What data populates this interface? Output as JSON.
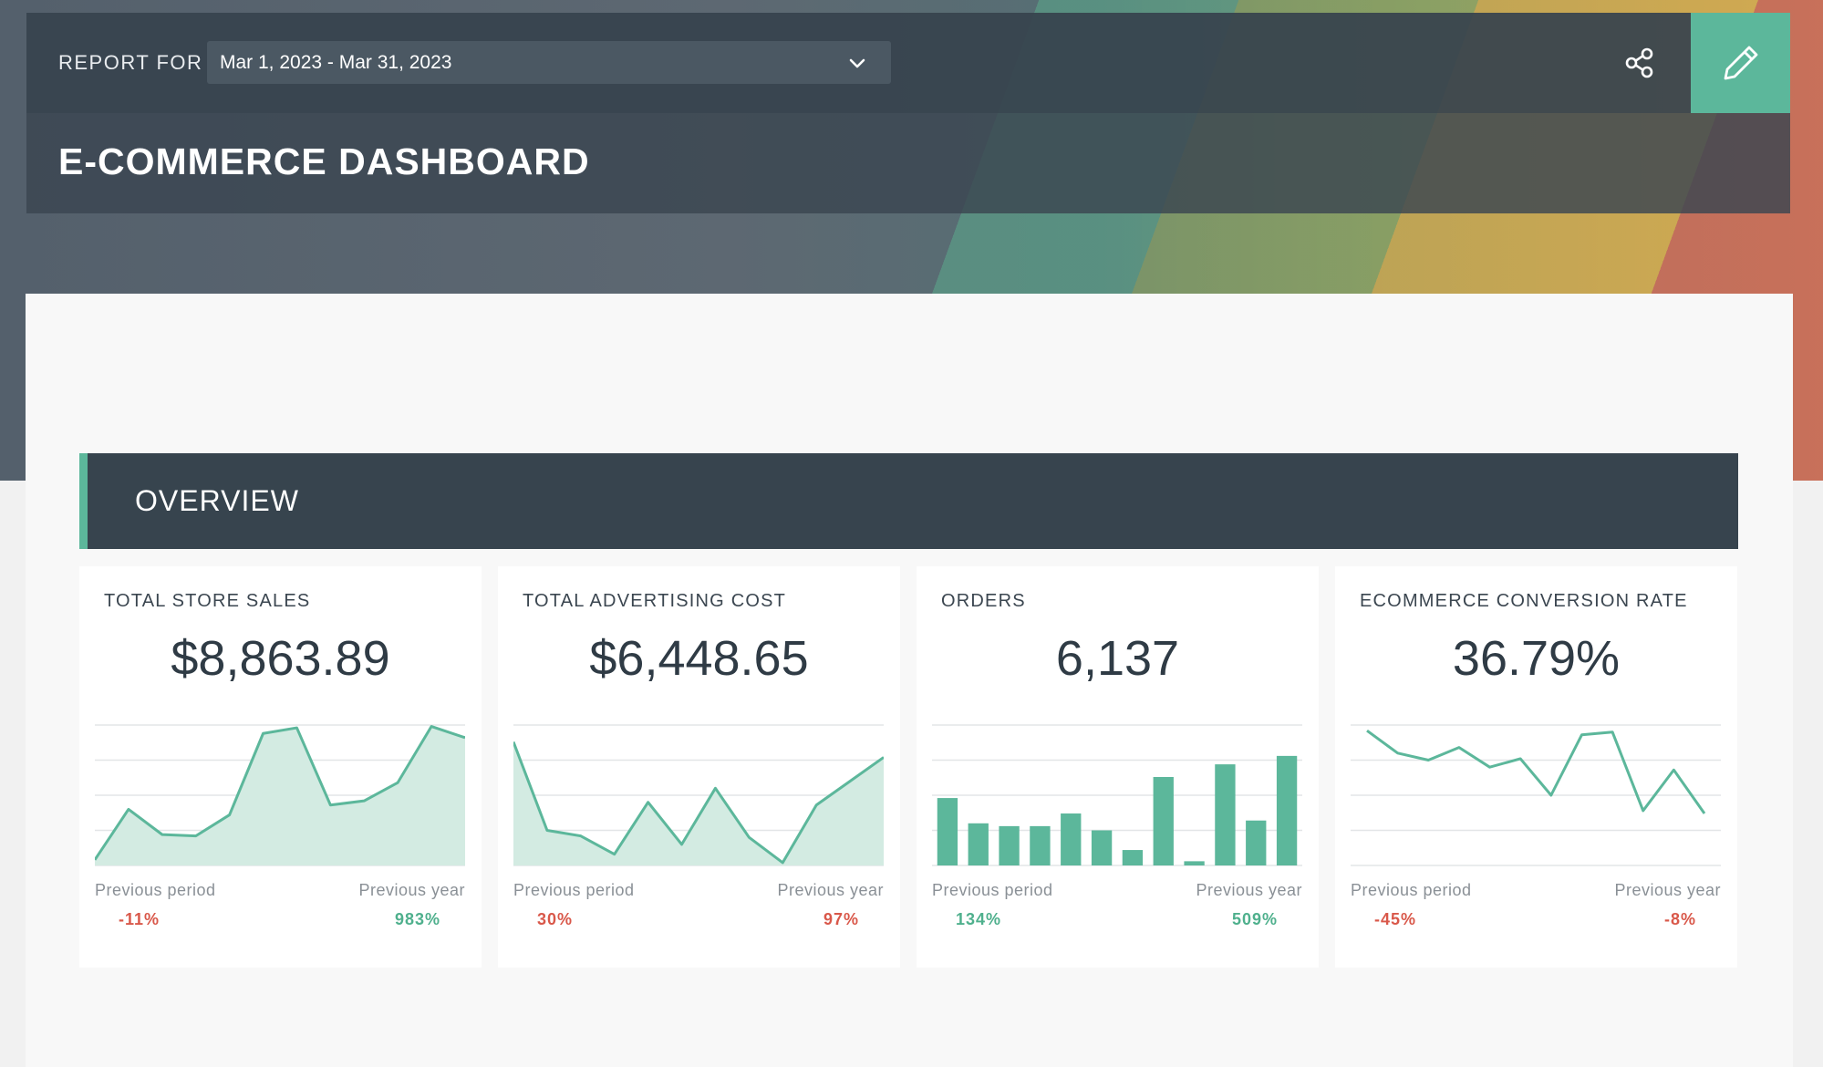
{
  "header": {
    "report_for_label": "REPORT FOR",
    "date_range": "Mar 1, 2023 - Mar 31, 2023",
    "title": "E-COMMERCE DASHBOARD",
    "share_icon": "share-icon",
    "edit_icon": "pencil-icon"
  },
  "section": {
    "title": "OVERVIEW",
    "accent_color": "#5cb79b"
  },
  "cards": [
    {
      "title": "TOTAL STORE SALES",
      "value": "$8,863.89",
      "prev_period_label": "Previous period",
      "prev_period_value": "-11%",
      "prev_period_trend": "negative",
      "prev_year_label": "Previous year",
      "prev_year_value": "983%",
      "prev_year_trend": "positive"
    },
    {
      "title": "TOTAL ADVERTISING COST",
      "value": "$6,448.65",
      "prev_period_label": "Previous period",
      "prev_period_value": "30%",
      "prev_period_trend": "negative",
      "prev_year_label": "Previous year",
      "prev_year_value": "97%",
      "prev_year_trend": "negative"
    },
    {
      "title": "ORDERS",
      "value": "6,137",
      "prev_period_label": "Previous period",
      "prev_period_value": "134%",
      "prev_period_trend": "positive",
      "prev_year_label": "Previous year",
      "prev_year_value": "509%",
      "prev_year_trend": "positive"
    },
    {
      "title": "ECOMMERCE CONVERSION RATE",
      "value": "36.79%",
      "prev_period_label": "Previous period",
      "prev_period_value": "-45%",
      "prev_period_trend": "negative",
      "prev_year_label": "Previous year",
      "prev_year_value": "-8%",
      "prev_year_trend": "negative"
    }
  ],
  "colors": {
    "accent": "#5cb79b",
    "negative": "#d9584a",
    "positive": "#4fb08d",
    "header_bg": "#37444e"
  },
  "chart_data": [
    {
      "type": "area",
      "values": [
        4,
        40,
        22,
        21,
        36,
        94,
        98,
        43,
        46,
        59,
        99,
        91
      ],
      "ylim": [
        0,
        100
      ],
      "grid": true
    },
    {
      "type": "area",
      "values": [
        88,
        25,
        21,
        8,
        45,
        15,
        55,
        20,
        2,
        43,
        60,
        77
      ],
      "ylim": [
        0,
        100
      ],
      "grid": true
    },
    {
      "type": "bar",
      "values": [
        48,
        30,
        28,
        28,
        37,
        25,
        11,
        63,
        3,
        72,
        32,
        78
      ],
      "ylim": [
        0,
        100
      ],
      "grid": true
    },
    {
      "type": "line",
      "values": [
        96,
        80,
        75,
        84,
        70,
        76,
        50,
        93,
        95,
        39,
        68,
        37
      ],
      "ylim": [
        0,
        100
      ],
      "grid": true
    }
  ]
}
